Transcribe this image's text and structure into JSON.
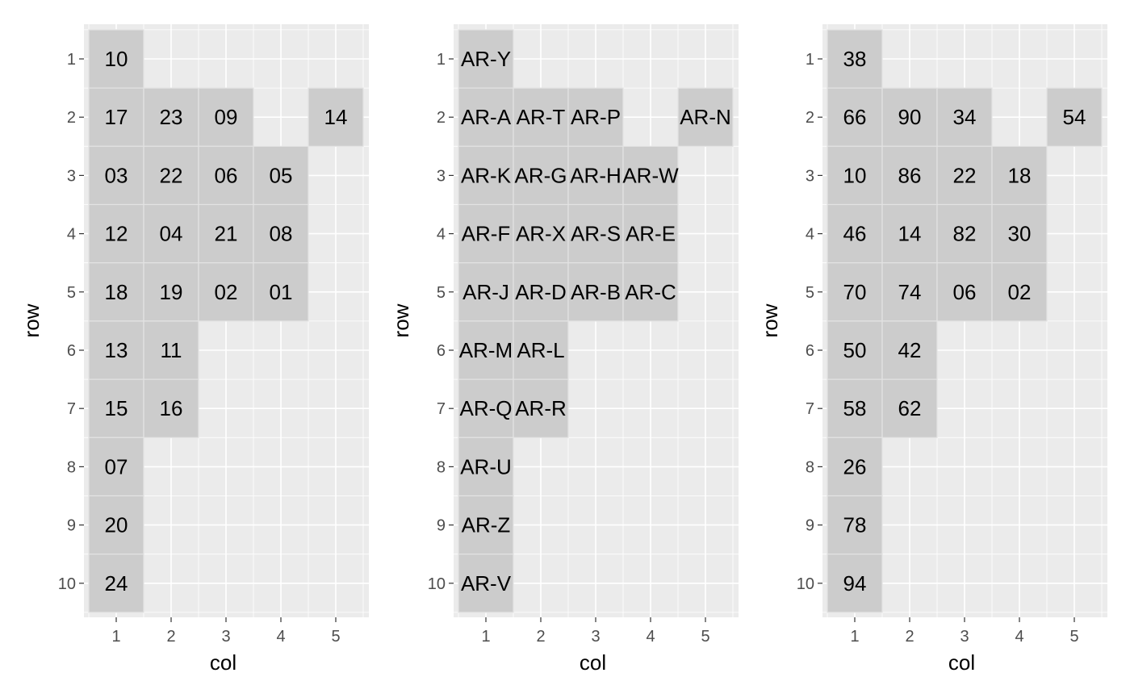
{
  "chart_data": [
    {
      "type": "heatmap",
      "title": "",
      "xlabel": "col",
      "ylabel": "row",
      "x_ticks": [
        "1",
        "2",
        "3",
        "4",
        "5"
      ],
      "y_ticks": [
        "1",
        "2",
        "3",
        "4",
        "5",
        "6",
        "7",
        "8",
        "9",
        "10"
      ],
      "xlim": [
        0.5,
        5.5
      ],
      "ylim": [
        10.5,
        0.5
      ],
      "grid": true,
      "tiles": [
        {
          "row": 1,
          "col": 1,
          "label": "10"
        },
        {
          "row": 2,
          "col": 1,
          "label": "17"
        },
        {
          "row": 2,
          "col": 2,
          "label": "23"
        },
        {
          "row": 2,
          "col": 3,
          "label": "09"
        },
        {
          "row": 2,
          "col": 5,
          "label": "14"
        },
        {
          "row": 3,
          "col": 1,
          "label": "03"
        },
        {
          "row": 3,
          "col": 2,
          "label": "22"
        },
        {
          "row": 3,
          "col": 3,
          "label": "06"
        },
        {
          "row": 3,
          "col": 4,
          "label": "05"
        },
        {
          "row": 4,
          "col": 1,
          "label": "12"
        },
        {
          "row": 4,
          "col": 2,
          "label": "04"
        },
        {
          "row": 4,
          "col": 3,
          "label": "21"
        },
        {
          "row": 4,
          "col": 4,
          "label": "08"
        },
        {
          "row": 5,
          "col": 1,
          "label": "18"
        },
        {
          "row": 5,
          "col": 2,
          "label": "19"
        },
        {
          "row": 5,
          "col": 3,
          "label": "02"
        },
        {
          "row": 5,
          "col": 4,
          "label": "01"
        },
        {
          "row": 6,
          "col": 1,
          "label": "13"
        },
        {
          "row": 6,
          "col": 2,
          "label": "11"
        },
        {
          "row": 7,
          "col": 1,
          "label": "15"
        },
        {
          "row": 7,
          "col": 2,
          "label": "16"
        },
        {
          "row": 8,
          "col": 1,
          "label": "07"
        },
        {
          "row": 9,
          "col": 1,
          "label": "20"
        },
        {
          "row": 10,
          "col": 1,
          "label": "24"
        }
      ]
    },
    {
      "type": "heatmap",
      "title": "",
      "xlabel": "col",
      "ylabel": "row",
      "x_ticks": [
        "1",
        "2",
        "3",
        "4",
        "5"
      ],
      "y_ticks": [
        "1",
        "2",
        "3",
        "4",
        "5",
        "6",
        "7",
        "8",
        "9",
        "10"
      ],
      "xlim": [
        0.5,
        5.5
      ],
      "ylim": [
        10.5,
        0.5
      ],
      "grid": true,
      "tiles": [
        {
          "row": 1,
          "col": 1,
          "label": "AR-Y"
        },
        {
          "row": 2,
          "col": 1,
          "label": "AR-A"
        },
        {
          "row": 2,
          "col": 2,
          "label": "AR-T"
        },
        {
          "row": 2,
          "col": 3,
          "label": "AR-P"
        },
        {
          "row": 2,
          "col": 5,
          "label": "AR-N"
        },
        {
          "row": 3,
          "col": 1,
          "label": "AR-K"
        },
        {
          "row": 3,
          "col": 2,
          "label": "AR-G"
        },
        {
          "row": 3,
          "col": 3,
          "label": "AR-H"
        },
        {
          "row": 3,
          "col": 4,
          "label": "AR-W"
        },
        {
          "row": 4,
          "col": 1,
          "label": "AR-F"
        },
        {
          "row": 4,
          "col": 2,
          "label": "AR-X"
        },
        {
          "row": 4,
          "col": 3,
          "label": "AR-S"
        },
        {
          "row": 4,
          "col": 4,
          "label": "AR-E"
        },
        {
          "row": 5,
          "col": 1,
          "label": "AR-J"
        },
        {
          "row": 5,
          "col": 2,
          "label": "AR-D"
        },
        {
          "row": 5,
          "col": 3,
          "label": "AR-B"
        },
        {
          "row": 5,
          "col": 4,
          "label": "AR-C"
        },
        {
          "row": 6,
          "col": 1,
          "label": "AR-M"
        },
        {
          "row": 6,
          "col": 2,
          "label": "AR-L"
        },
        {
          "row": 7,
          "col": 1,
          "label": "AR-Q"
        },
        {
          "row": 7,
          "col": 2,
          "label": "AR-R"
        },
        {
          "row": 8,
          "col": 1,
          "label": "AR-U"
        },
        {
          "row": 9,
          "col": 1,
          "label": "AR-Z"
        },
        {
          "row": 10,
          "col": 1,
          "label": "AR-V"
        }
      ]
    },
    {
      "type": "heatmap",
      "title": "",
      "xlabel": "col",
      "ylabel": "row",
      "x_ticks": [
        "1",
        "2",
        "3",
        "4",
        "5"
      ],
      "y_ticks": [
        "1",
        "2",
        "3",
        "4",
        "5",
        "6",
        "7",
        "8",
        "9",
        "10"
      ],
      "xlim": [
        0.5,
        5.5
      ],
      "ylim": [
        10.5,
        0.5
      ],
      "grid": true,
      "tiles": [
        {
          "row": 1,
          "col": 1,
          "label": "38"
        },
        {
          "row": 2,
          "col": 1,
          "label": "66"
        },
        {
          "row": 2,
          "col": 2,
          "label": "90"
        },
        {
          "row": 2,
          "col": 3,
          "label": "34"
        },
        {
          "row": 2,
          "col": 5,
          "label": "54"
        },
        {
          "row": 3,
          "col": 1,
          "label": "10"
        },
        {
          "row": 3,
          "col": 2,
          "label": "86"
        },
        {
          "row": 3,
          "col": 3,
          "label": "22"
        },
        {
          "row": 3,
          "col": 4,
          "label": "18"
        },
        {
          "row": 4,
          "col": 1,
          "label": "46"
        },
        {
          "row": 4,
          "col": 2,
          "label": "14"
        },
        {
          "row": 4,
          "col": 3,
          "label": "82"
        },
        {
          "row": 4,
          "col": 4,
          "label": "30"
        },
        {
          "row": 5,
          "col": 1,
          "label": "70"
        },
        {
          "row": 5,
          "col": 2,
          "label": "74"
        },
        {
          "row": 5,
          "col": 3,
          "label": "06"
        },
        {
          "row": 5,
          "col": 4,
          "label": "02"
        },
        {
          "row": 6,
          "col": 1,
          "label": "50"
        },
        {
          "row": 6,
          "col": 2,
          "label": "42"
        },
        {
          "row": 7,
          "col": 1,
          "label": "58"
        },
        {
          "row": 7,
          "col": 2,
          "label": "62"
        },
        {
          "row": 8,
          "col": 1,
          "label": "26"
        },
        {
          "row": 9,
          "col": 1,
          "label": "78"
        },
        {
          "row": 10,
          "col": 1,
          "label": "94"
        }
      ]
    }
  ],
  "colors": {
    "panel_background": "#ebebeb",
    "grid_line": "#ffffff",
    "tile_fill": "#cccccc",
    "tile_border": "#e3e3e3",
    "tick_text": "#4d4d4d",
    "tick_mark": "#333333",
    "label_text": "#000000"
  }
}
